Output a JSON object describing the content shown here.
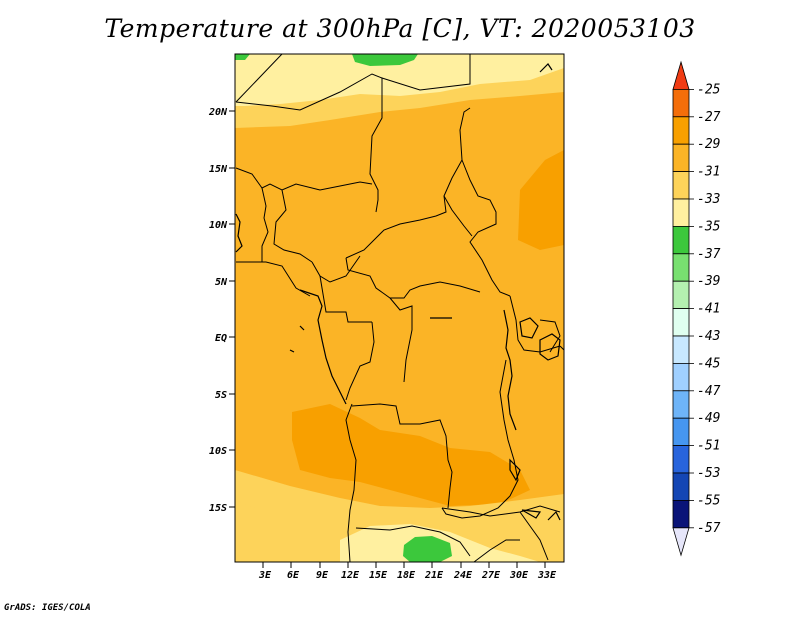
{
  "title": "Temperature at 300hPa [C], VT: 2020053103",
  "credit": "GrADS: IGES/COLA",
  "lat_labels": [
    "20N",
    "15N",
    "10N",
    "5N",
    "EQ",
    "5S",
    "10S",
    "15S"
  ],
  "lon_labels": [
    "3E",
    "6E",
    "9E",
    "12E",
    "15E",
    "18E",
    "21E",
    "24E",
    "27E",
    "30E",
    "33E"
  ],
  "colorbar": {
    "labels": [
      "-25",
      "-27",
      "-29",
      "-31",
      "-33",
      "-35",
      "-37",
      "-39",
      "-41",
      "-43",
      "-45",
      "-47",
      "-49",
      "-51",
      "-53",
      "-55",
      "-57"
    ],
    "colors": [
      "#f03c14",
      "#f46e0a",
      "#f8a000",
      "#fbb426",
      "#fdd35a",
      "#fff0a0",
      "#3cc83c",
      "#78e070",
      "#b4f0b0",
      "#e0fff0",
      "#c8e8ff",
      "#a0d0ff",
      "#6eb4f8",
      "#4696f0",
      "#2864dc",
      "#1446b4",
      "#0a1478",
      "#e6e6fa"
    ]
  },
  "map": {
    "region": "Central Africa",
    "lat_range": [
      -20,
      24
    ],
    "lon_range": [
      0,
      36
    ]
  }
}
